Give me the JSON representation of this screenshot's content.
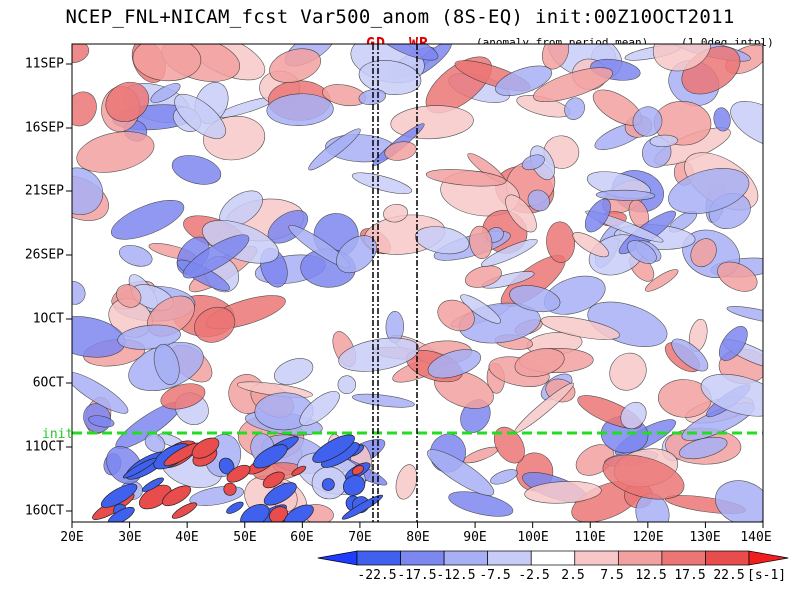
{
  "chart_data": {
    "type": "heatmap",
    "title": "NCEP_FNL+NICAM_fcst Var500_anom (8S-EQ) init:00Z10OCT2011",
    "annotation_left": "(anomaly from period mean)",
    "annotation_right": "(1.0deg intpl)",
    "markers": [
      {
        "label": "GD",
        "lon": 73
      },
      {
        "label": "WR",
        "lon": 80
      }
    ],
    "init_label": "init",
    "x_ticks": [
      "20E",
      "30E",
      "40E",
      "50E",
      "60E",
      "70E",
      "80E",
      "90E",
      "100E",
      "110E",
      "120E",
      "130E",
      "140E"
    ],
    "y_ticks": [
      "11SEP",
      "16SEP",
      "21SEP",
      "26SEP",
      "1OCT",
      "6OCT",
      "11OCT",
      "16OCT"
    ],
    "xlim": [
      "20E",
      "140E"
    ],
    "colorbar": {
      "labels": [
        "-22.5",
        "-17.5",
        "-12.5",
        "-7.5",
        "-2.5",
        "2.5",
        "7.5",
        "12.5",
        "17.5",
        "22.5"
      ],
      "unit": "[s-1]",
      "colors": [
        "#1e3cff",
        "#4060ee",
        "#7d87f0",
        "#a8b0f5",
        "#c8cdf8",
        "#ffffff",
        "#f8c8c8",
        "#f3a0a0",
        "#ec7676",
        "#e84c4c",
        "#f01e1e"
      ]
    }
  }
}
